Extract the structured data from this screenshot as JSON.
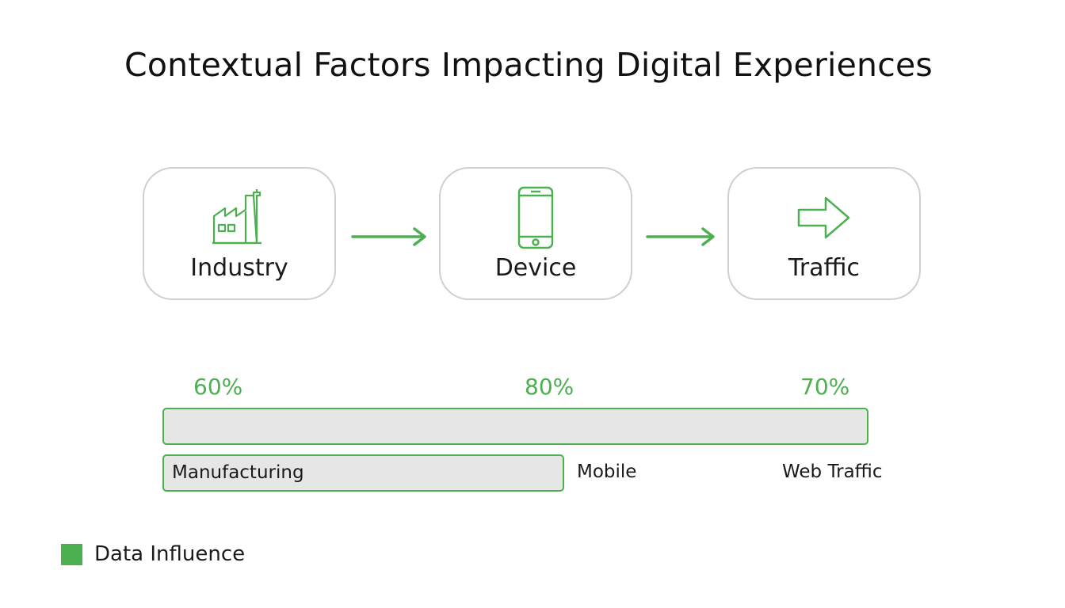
{
  "title": "Contextual Factors Impacting Digital Experiences",
  "colors": {
    "accent": "#4caf50",
    "card_border": "#cfcfcf",
    "bar_background": "#e6e6e6"
  },
  "steps": [
    {
      "label": "Industry",
      "icon": "factory-icon"
    },
    {
      "label": "Device",
      "icon": "smartphone-icon"
    },
    {
      "label": "Traffic",
      "icon": "arrow-right-icon"
    }
  ],
  "influence": [
    {
      "percent_label": "60%",
      "value": 60,
      "category": "Manufacturing"
    },
    {
      "percent_label": "80%",
      "value": 80,
      "category": "Mobile"
    },
    {
      "percent_label": "70%",
      "value": 70,
      "category": "Web Traffic"
    }
  ],
  "legend": {
    "label": "Data Influence"
  }
}
